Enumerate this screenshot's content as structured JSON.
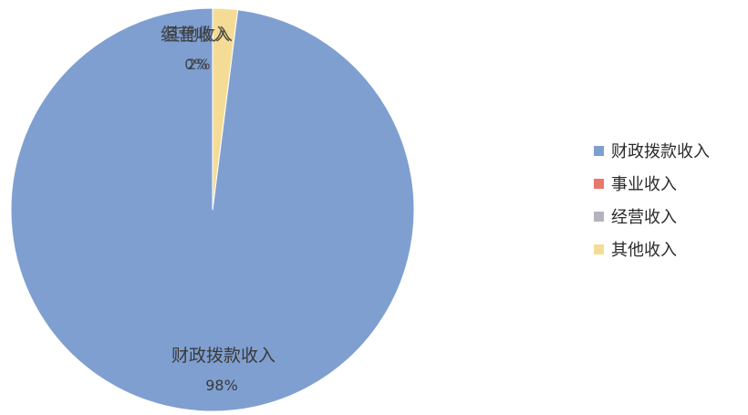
{
  "chart_data": {
    "type": "pie",
    "categories": [
      "财政拨款收入",
      "事业收入",
      "经营收入",
      "其他收入"
    ],
    "values": [
      98,
      0,
      0,
      2
    ],
    "colors": [
      "#7f9fd0",
      "#e8786a",
      "#b4b4bc",
      "#f5dc96"
    ],
    "data_labels": [
      {
        "category": "财政拨款收入",
        "text": "98%"
      },
      {
        "category": "其他收入",
        "text": "2%"
      },
      {
        "category": "经营收入",
        "text": "0%"
      }
    ],
    "legend_position": "right"
  }
}
